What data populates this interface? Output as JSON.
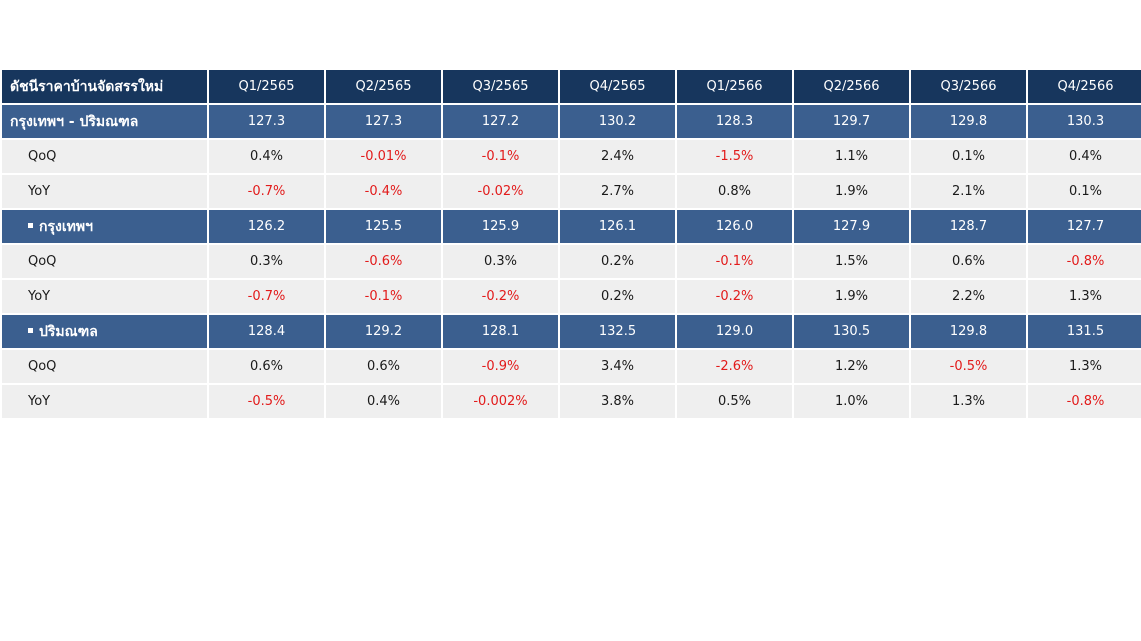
{
  "table": {
    "header": {
      "label": "ดัชนีราคาบ้านจัดสรรใหม่",
      "quarters": [
        "Q1/2565",
        "Q2/2565",
        "Q3/2565",
        "Q4/2565",
        "Q1/2566",
        "Q2/2566",
        "Q3/2566",
        "Q4/2566"
      ]
    },
    "colors": {
      "header_bg": "#17365d",
      "index_row_bg": "#3b5f8f",
      "change_row_bg": "#efefef",
      "negative_text": "#e21b1b"
    },
    "groups": [
      {
        "label": "กรุงเทพฯ - ปริมณฑล",
        "bullet": false,
        "index_values": [
          "127.3",
          "127.3",
          "127.2",
          "130.2",
          "128.3",
          "129.7",
          "129.8",
          "130.3"
        ],
        "qoq": {
          "label": "QoQ",
          "values": [
            "0.4%",
            "-0.01%",
            "-0.1%",
            "2.4%",
            "-1.5%",
            "1.1%",
            "0.1%",
            "0.4%"
          ]
        },
        "yoy": {
          "label": "YoY",
          "values": [
            "-0.7%",
            "-0.4%",
            "-0.02%",
            "2.7%",
            "0.8%",
            "1.9%",
            "2.1%",
            "0.1%"
          ]
        }
      },
      {
        "label": "กรุงเทพฯ",
        "bullet": true,
        "index_values": [
          "126.2",
          "125.5",
          "125.9",
          "126.1",
          "126.0",
          "127.9",
          "128.7",
          "127.7"
        ],
        "qoq": {
          "label": "QoQ",
          "values": [
            "0.3%",
            "-0.6%",
            "0.3%",
            "0.2%",
            "-0.1%",
            "1.5%",
            "0.6%",
            "-0.8%"
          ]
        },
        "yoy": {
          "label": "YoY",
          "values": [
            "-0.7%",
            "-0.1%",
            "-0.2%",
            "0.2%",
            "-0.2%",
            "1.9%",
            "2.2%",
            "1.3%"
          ]
        }
      },
      {
        "label": "ปริมณฑล",
        "bullet": true,
        "index_values": [
          "128.4",
          "129.2",
          "128.1",
          "132.5",
          "129.0",
          "130.5",
          "129.8",
          "131.5"
        ],
        "qoq": {
          "label": "QoQ",
          "values": [
            "0.6%",
            "0.6%",
            "-0.9%",
            "3.4%",
            "-2.6%",
            "1.2%",
            "-0.5%",
            "1.3%"
          ]
        },
        "yoy": {
          "label": "YoY",
          "values": [
            "-0.5%",
            "0.4%",
            "-0.002%",
            "3.8%",
            "0.5%",
            "1.0%",
            "1.3%",
            "-0.8%"
          ]
        }
      }
    ]
  }
}
